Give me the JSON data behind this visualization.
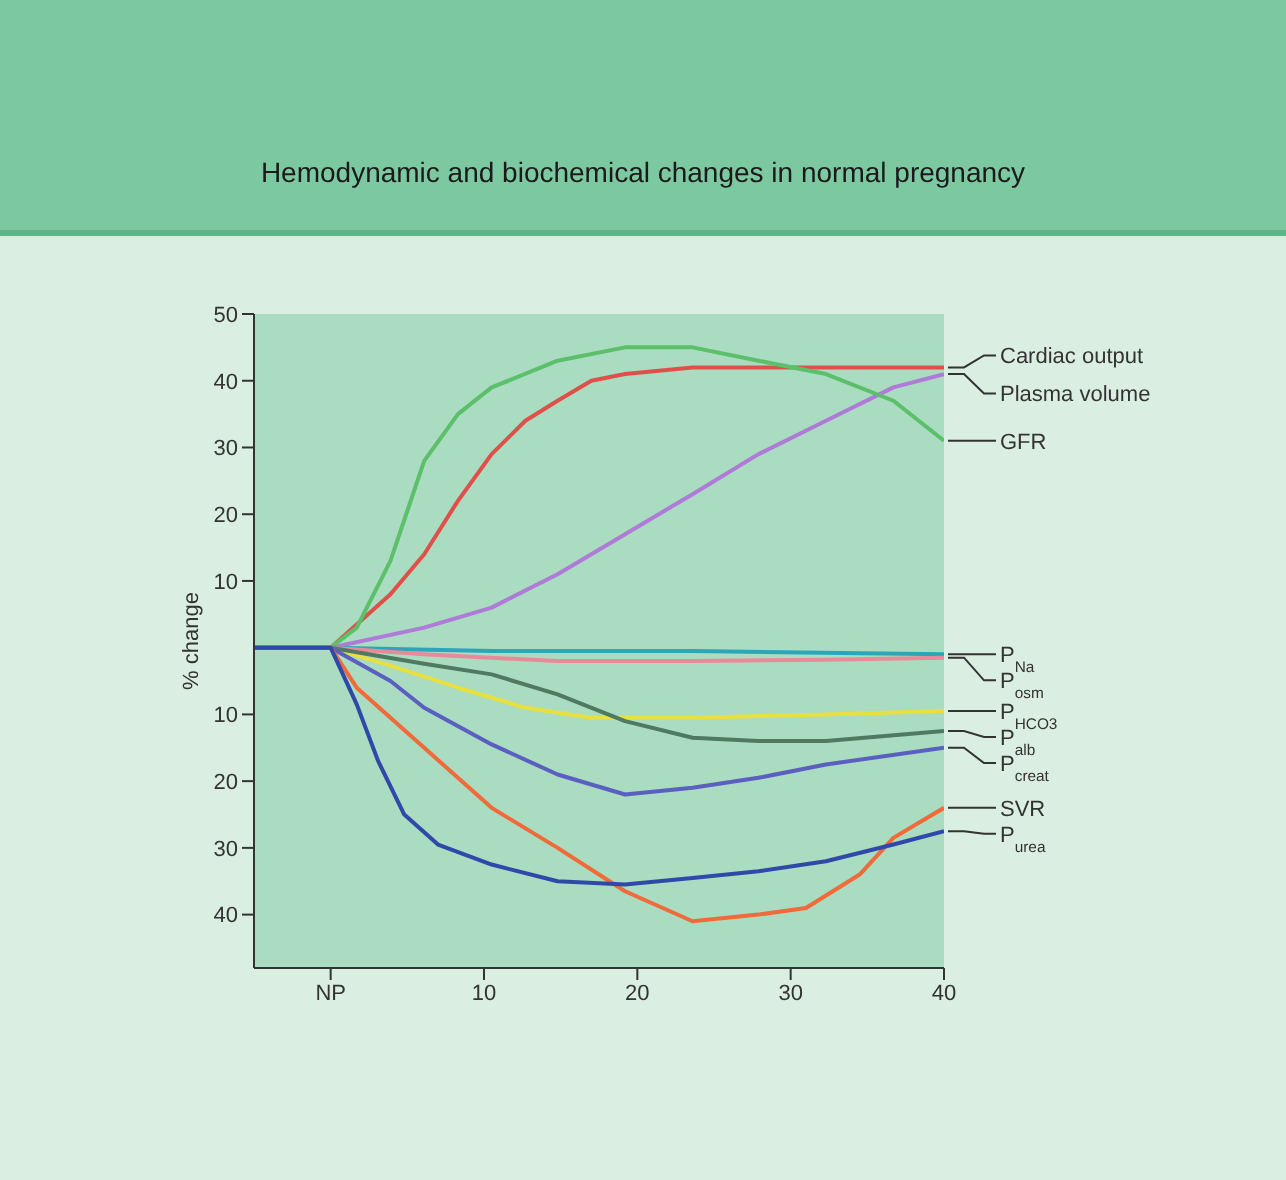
{
  "chart_data": {
    "type": "line",
    "title": "Hemodynamic and biochemical changes in normal pregnancy",
    "ylabel": "% change",
    "xlim": [
      -5,
      40
    ],
    "xticks": [
      {
        "value": 0,
        "label": "NP"
      },
      10,
      20,
      30,
      40
    ],
    "ylim": [
      -48,
      50
    ],
    "yticks": [
      50,
      40,
      30,
      20,
      10,
      {
        "value": -10,
        "label": "10"
      },
      {
        "value": -20,
        "label": "20"
      },
      {
        "value": -30,
        "label": "30"
      },
      {
        "value": -40,
        "label": "40"
      }
    ],
    "series": [
      {
        "name": "Cardiac output",
        "color": "#e0504a",
        "x": [
          -5,
          0,
          3.9,
          6.1,
          8.3,
          10.5,
          12.7,
          14.8,
          17,
          19.2,
          23.6,
          27.9,
          32.3,
          40
        ],
        "values": [
          0,
          0,
          8,
          14,
          22,
          29,
          34,
          37,
          40,
          41,
          42,
          42,
          42,
          42
        ]
      },
      {
        "name": "Plasma volume",
        "color": "#b07ad8",
        "x": [
          -5,
          0,
          6.1,
          10.5,
          14.8,
          19.2,
          23.6,
          27.9,
          32.3,
          36.7,
          40
        ],
        "values": [
          0,
          0,
          3,
          6,
          11,
          17,
          23,
          29,
          34,
          39,
          41
        ]
      },
      {
        "name": "GFR",
        "color": "#5cbf6a",
        "x": [
          -5,
          0,
          1.7,
          3.9,
          6.1,
          8.3,
          10.5,
          14.8,
          19.2,
          23.6,
          27.9,
          32.3,
          36.7,
          40
        ],
        "values": [
          0,
          0,
          3,
          13,
          28,
          35,
          39,
          43,
          45,
          45,
          43,
          41,
          37,
          31
        ]
      },
      {
        "name": "P$_{Na}$",
        "color": "#2aa6b8",
        "x": [
          -5,
          0,
          10.5,
          23.6,
          40
        ],
        "values": [
          0,
          0,
          -0.5,
          -0.5,
          -1
        ]
      },
      {
        "name": "P$_{osm}$",
        "color": "#e88a9a",
        "x": [
          -5,
          0,
          6.1,
          14.8,
          23.6,
          32.3,
          40
        ],
        "values": [
          0,
          0,
          -1,
          -2,
          -2,
          -1.8,
          -1.5
        ]
      },
      {
        "name": "P$_{HCO3}$",
        "color": "#e8e040",
        "x": [
          -5,
          0,
          3.9,
          8.3,
          12.7,
          17,
          23.6,
          32.3,
          40
        ],
        "values": [
          0,
          0,
          -2.7,
          -6,
          -9,
          -10.5,
          -10.5,
          -10,
          -9.5
        ]
      },
      {
        "name": "P$_{alb}$",
        "color": "#4f7a60",
        "x": [
          -5,
          0,
          6.1,
          10.5,
          14.8,
          19.2,
          23.6,
          27.9,
          32.3,
          40
        ],
        "values": [
          0,
          0,
          -2.4,
          -4,
          -7,
          -11,
          -13.5,
          -14,
          -14,
          -12.5
        ]
      },
      {
        "name": "P$_{creat}$",
        "color": "#5a5fc0",
        "x": [
          -5,
          0,
          3.9,
          6.1,
          10.5,
          14.8,
          19.2,
          23.6,
          27.9,
          32.3,
          40
        ],
        "values": [
          0,
          0,
          -5,
          -9,
          -14.5,
          -19,
          -22,
          -21,
          -19.5,
          -17.5,
          -15
        ]
      },
      {
        "name": "SVR",
        "color": "#f06a3a",
        "x": [
          -5,
          0,
          1.7,
          6.1,
          10.5,
          14.8,
          19.2,
          23.6,
          27.9,
          31,
          34.5,
          36.7,
          40
        ],
        "values": [
          0,
          0,
          -6,
          -15,
          -24,
          -30,
          -36.5,
          -41,
          -40,
          -39,
          -34,
          -28.5,
          -24
        ]
      },
      {
        "name": "P$_{urea}$",
        "color": "#3048a8",
        "x": [
          -5,
          0,
          1.7,
          3.1,
          4.8,
          7,
          10.5,
          14.8,
          19.2,
          23.6,
          27.9,
          32.3,
          36.7,
          40
        ],
        "values": [
          0,
          0,
          -8.5,
          -17,
          -25,
          -29.5,
          -32.5,
          -35,
          -35.5,
          -34.5,
          -33.5,
          -32,
          -29.5,
          -27.5
        ]
      }
    ]
  }
}
